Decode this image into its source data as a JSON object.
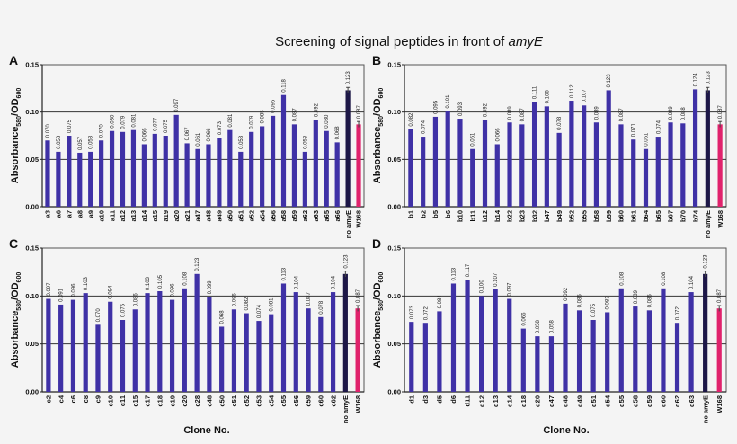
{
  "chart_data": {
    "title_prefix": "Screening of signal peptides in front of ",
    "title_italic": "amyE",
    "ylabel": {
      "main": "Absorbance",
      "sub1": "580",
      "mid": "/OD",
      "sub2": "600"
    },
    "xlabel": "Clone No.",
    "yticks": [
      "0.00",
      "0.05",
      "0.10",
      "0.15"
    ],
    "ylim": [
      0,
      0.15
    ],
    "grid": "horizontal at 0.05 and 0.10",
    "colors": {
      "sample": "#3f31a6",
      "no_amyE": "#1d1747",
      "W168": "#e0226c"
    },
    "panels": [
      {
        "type": "bar",
        "label": "A",
        "categories": [
          "a3",
          "a6",
          "a7",
          "a8",
          "a9",
          "a10",
          "a11",
          "a12",
          "a13",
          "a14",
          "a15",
          "a19",
          "a20",
          "a21",
          "a47",
          "a48",
          "a49",
          "a50",
          "a51",
          "a52",
          "a54",
          "a56",
          "a58",
          "a59",
          "a62",
          "a63",
          "a65",
          "a66",
          "no amyE",
          "W168"
        ],
        "values": [
          "0.070",
          "0.058",
          "0.075",
          "0.057",
          "0.058",
          "0.070",
          "0.080",
          "0.079",
          "0.081",
          "0.066",
          "0.077",
          "0.075",
          "0.097",
          "0.067",
          "0.061",
          "0.066",
          "0.073",
          "0.081",
          "0.058",
          "0.079",
          "0.085",
          "0.096",
          "0.118",
          "0.087",
          "0.058",
          "0.092",
          "0.080",
          "0.068",
          "0.123",
          "0.087"
        ]
      },
      {
        "type": "bar",
        "label": "B",
        "categories": [
          "b1",
          "b2",
          "b5",
          "b6",
          "b10",
          "b11",
          "b12",
          "b14",
          "b22",
          "b23",
          "b32",
          "b47",
          "b49",
          "b52",
          "b55",
          "b58",
          "b59",
          "b60",
          "b61",
          "b64",
          "b65",
          "b67",
          "b70",
          "b74",
          "no amyE",
          "W168"
        ],
        "values": [
          "0.082",
          "0.074",
          "0.095",
          "0.101",
          "0.093",
          "0.061",
          "0.092",
          "0.066",
          "0.089",
          "0.087",
          "0.111",
          "0.106",
          "0.078",
          "0.112",
          "0.107",
          "0.089",
          "0.123",
          "0.087",
          "0.071",
          "0.061",
          "0.074",
          "0.089",
          "0.088",
          "0.124",
          "0.123",
          "0.087"
        ]
      },
      {
        "type": "bar",
        "label": "C",
        "categories": [
          "c2",
          "c4",
          "c6",
          "c8",
          "c9",
          "c10",
          "c11",
          "c15",
          "c17",
          "c18",
          "c19",
          "c20",
          "c28",
          "c48",
          "c50",
          "c51",
          "c52",
          "c53",
          "c54",
          "c55",
          "c56",
          "c59",
          "c60",
          "c62",
          "no amyE",
          "W168"
        ],
        "values": [
          "0.097",
          "0.091",
          "0.096",
          "0.103",
          "0.070",
          "0.094",
          "0.075",
          "0.086",
          "0.103",
          "0.105",
          "0.096",
          "0.108",
          "0.123",
          "0.099",
          "0.068",
          "0.086",
          "0.082",
          "0.074",
          "0.081",
          "0.113",
          "0.104",
          "0.087",
          "0.078",
          "0.104",
          "0.123",
          "0.087"
        ]
      },
      {
        "type": "bar",
        "label": "D",
        "categories": [
          "d1",
          "d3",
          "d5",
          "d6",
          "d11",
          "d12",
          "d13",
          "d14",
          "d18",
          "d20",
          "d47",
          "d48",
          "d49",
          "d51",
          "d54",
          "d55",
          "d58",
          "d59",
          "d60",
          "d62",
          "d63",
          "no amyE",
          "W168"
        ],
        "values": [
          "0.073",
          "0.072",
          "0.084",
          "0.113",
          "0.117",
          "0.100",
          "0.107",
          "0.097",
          "0.066",
          "0.058",
          "0.058",
          "0.092",
          "0.085",
          "0.075",
          "0.083",
          "0.108",
          "0.089",
          "0.085",
          "0.108",
          "0.072",
          "0.104",
          "0.123",
          "0.087"
        ]
      }
    ]
  }
}
